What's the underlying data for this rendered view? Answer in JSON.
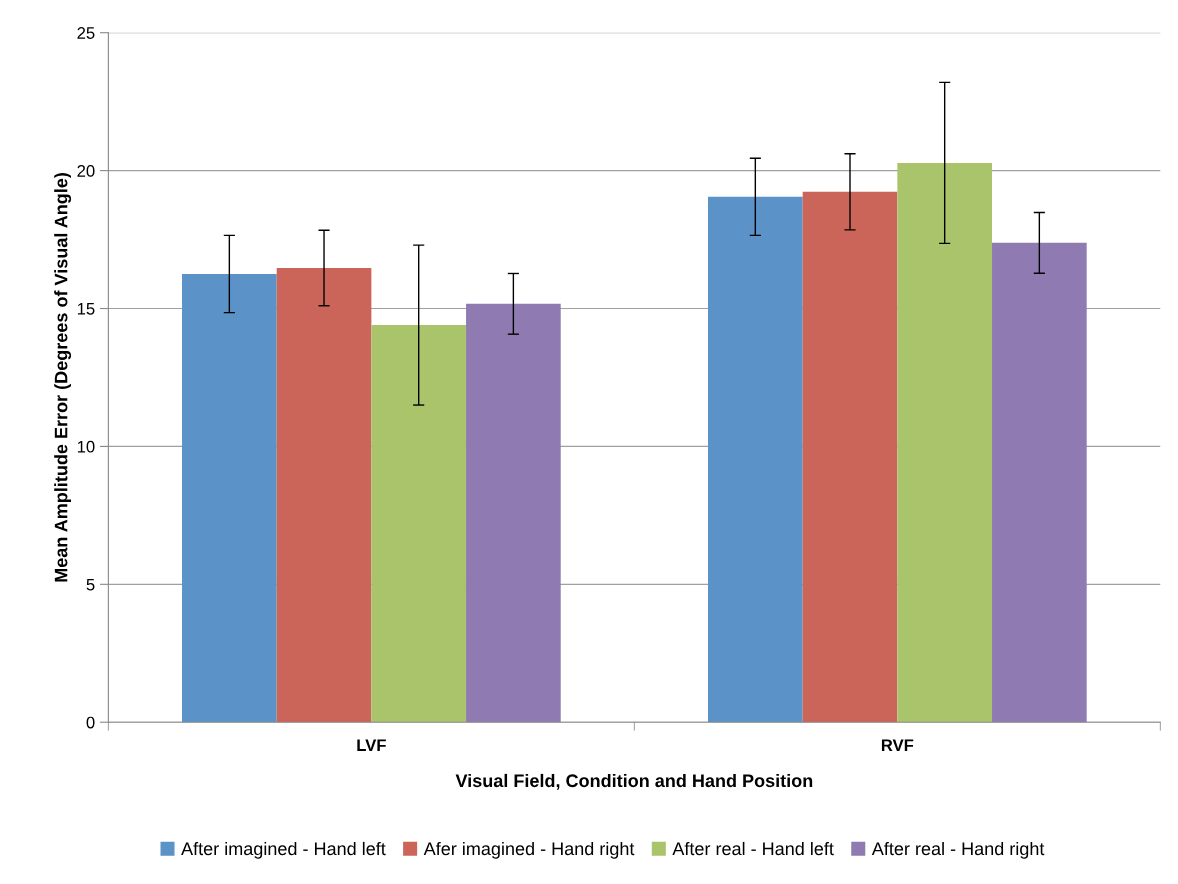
{
  "chart_data": {
    "type": "bar",
    "xlabel": "Visual Field, Condition and Hand Position",
    "ylabel": "Mean Amplitude Error (Degrees of Visual Angle)",
    "categories": [
      "LVF",
      "RVF"
    ],
    "series": [
      {
        "name": "After imagined - Hand left",
        "color": "#5b92c8",
        "values": [
          16.25,
          19.05
        ],
        "errors": [
          1.4,
          1.4
        ]
      },
      {
        "name": "Afer imagined - Hand right",
        "color": "#cc6559",
        "values": [
          16.47,
          19.23
        ],
        "errors": [
          1.37,
          1.38
        ]
      },
      {
        "name": "After real - Hand left",
        "color": "#a9c46a",
        "values": [
          14.4,
          20.28
        ],
        "errors": [
          2.9,
          2.92
        ]
      },
      {
        "name": "After real - Hand right",
        "color": "#8f7bb2",
        "values": [
          15.17,
          17.38
        ],
        "errors": [
          1.1,
          1.1
        ]
      }
    ],
    "ylim": [
      0,
      25
    ],
    "yticks": [
      0,
      5,
      10,
      15,
      20,
      25
    ],
    "grid": "y",
    "legend": "bottom"
  }
}
